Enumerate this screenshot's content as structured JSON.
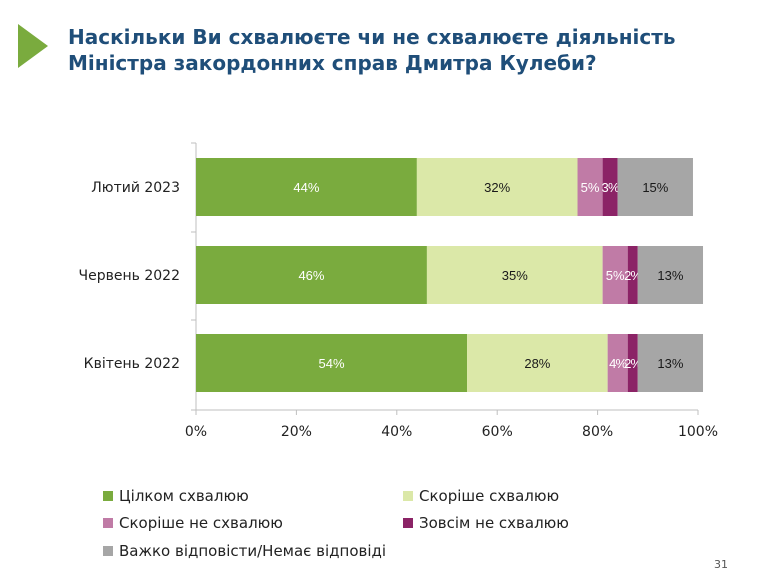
{
  "title_lines": [
    "Наскільки Ви схвалюєте чи не схвалюєте діяльність",
    "Міністра закордонних справ Дмитра Кулеби?"
  ],
  "page_number": "31",
  "colors": {
    "accent": "#7aab3e",
    "title": "#1f4e79"
  },
  "chart_data": {
    "type": "bar",
    "orientation": "horizontal",
    "stacked": true,
    "categories": [
      "Лютий 2023",
      "Червень 2022",
      "Квітень 2022"
    ],
    "series": [
      {
        "name": "Цілком схвалюю",
        "values": [
          44,
          46,
          54
        ],
        "labels": [
          "44%",
          "46%",
          "54%"
        ],
        "color": "#7aab3e",
        "label_color": "#ffffff"
      },
      {
        "name": "Скоріше схвалюю",
        "values": [
          32,
          35,
          28
        ],
        "labels": [
          "32%",
          "35%",
          "28%"
        ],
        "color": "#dbe8a8",
        "label_color": "#1a1a1a"
      },
      {
        "name": "Скоріше не схвалюю",
        "values": [
          5,
          5,
          4
        ],
        "labels": [
          "5%",
          "5%",
          "4%"
        ],
        "color": "#c07ba6",
        "label_color": "#ffffff"
      },
      {
        "name": "Зовсім не схвалюю",
        "values": [
          3,
          2,
          2
        ],
        "labels": [
          "3%",
          "2%",
          "2%"
        ],
        "color": "#8b2366",
        "label_color": "#ffffff"
      },
      {
        "name": "Важко відповісти/Немає відповіді",
        "values": [
          15,
          13,
          13
        ],
        "labels": [
          "15%",
          "13%",
          "13%"
        ],
        "color": "#a6a6a6",
        "label_color": "#1a1a1a"
      }
    ],
    "x_ticks": [
      "0%",
      "20%",
      "40%",
      "60%",
      "80%",
      "100%"
    ],
    "xlim": [
      0,
      100
    ],
    "grid": false,
    "legend_position": "bottom"
  }
}
